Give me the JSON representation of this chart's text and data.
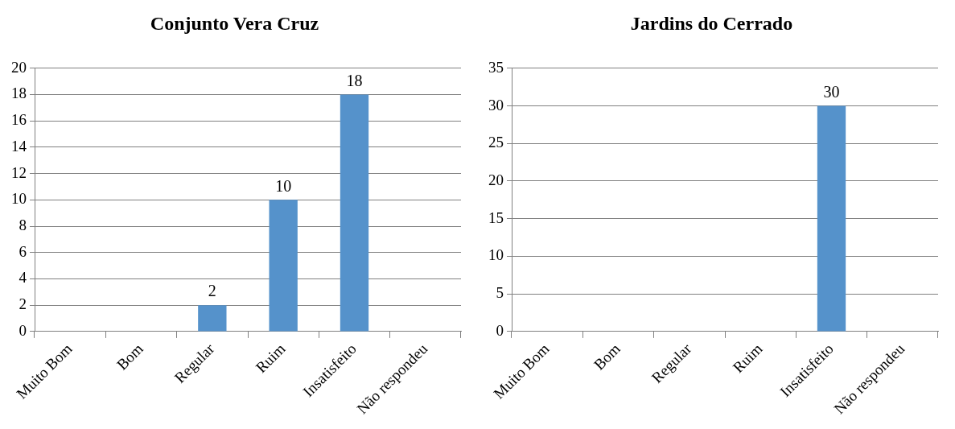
{
  "chart_data": [
    {
      "type": "bar",
      "title": "Conjunto Vera Cruz",
      "categories": [
        "Muito Bom",
        "Bom",
        "Regular",
        "Ruim",
        "Insatisfeito",
        "Não respondeu"
      ],
      "values": [
        0,
        0,
        2,
        10,
        18,
        0
      ],
      "value_labels": [
        null,
        null,
        "2",
        "10",
        "18",
        null
      ],
      "color": "#5592cb",
      "ylim": [
        0,
        20
      ],
      "yticks": [
        0,
        2,
        4,
        6,
        8,
        10,
        12,
        14,
        16,
        18,
        20
      ],
      "grid": "y"
    },
    {
      "type": "bar",
      "title": "Jardins do Cerrado",
      "categories": [
        "Muito Bom",
        "Bom",
        "Regular",
        "Ruim",
        "Insatisfeito",
        "Não respondeu"
      ],
      "values": [
        0,
        0,
        0,
        0,
        30,
        0
      ],
      "value_labels": [
        null,
        null,
        null,
        null,
        "30",
        null
      ],
      "color": "#5592cb",
      "ylim": [
        0,
        35
      ],
      "yticks": [
        0,
        5,
        10,
        15,
        20,
        25,
        30,
        35
      ],
      "grid": "y"
    }
  ]
}
